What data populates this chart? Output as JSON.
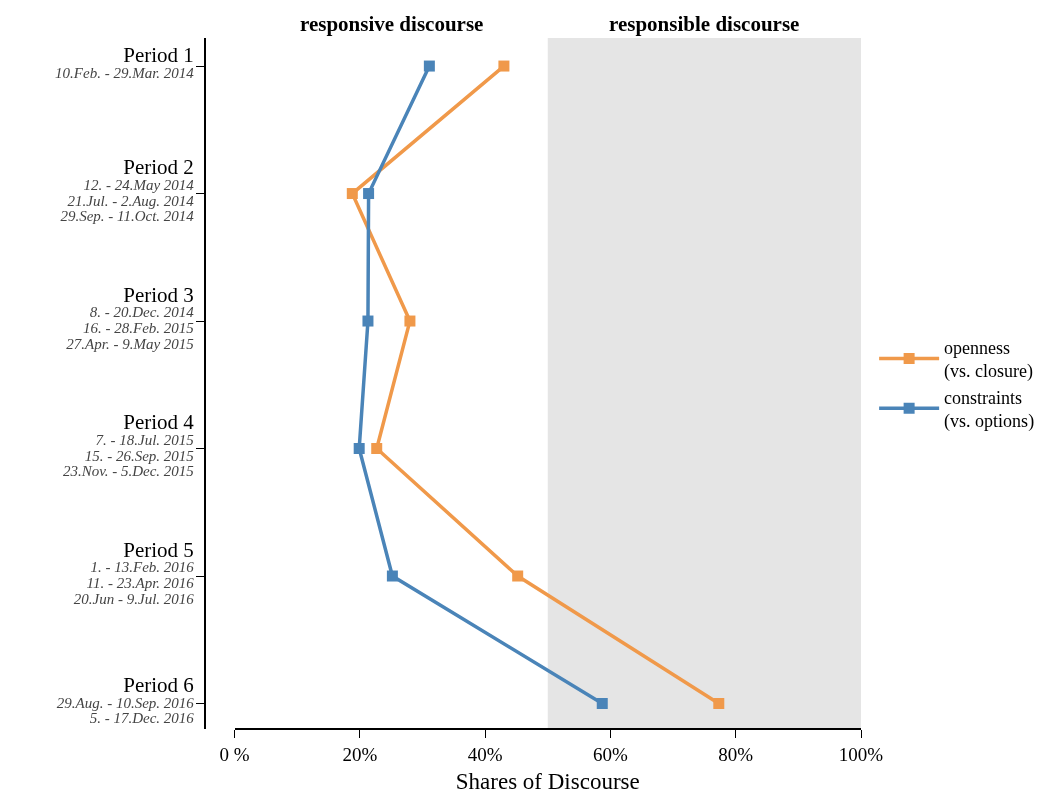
{
  "chart_data": {
    "type": "line",
    "categories": [
      "Period 1\n10.Feb. - 29.Mar. 2014",
      "Period 2\n12. - 24.May 2014\n21.Jul. - 2.Aug. 2014\n29.Sep. - 11.Oct. 2014",
      "Period 3\n8. - 20.Dec. 2014\n16. - 28.Feb. 2015\n27.Apr. - 9.May 2015",
      "Period 4\n7. - 18.Jul. 2015\n15. - 26.Sep. 2015\n23.Nov. - 5.Dec. 2015",
      "Period 5\n1. - 13.Feb. 2016\n11. - 23.Apr. 2016\n20.Jun - 9.Jul. 2016",
      "Period 6\n29.Aug. - 10.Sep. 2016\n5. - 17.Dec. 2016"
    ],
    "orientation": "horizontal",
    "series": [
      {
        "name": "openness\n(vs. closure)",
        "color": "#f0994a",
        "values": [
          43.0,
          18.8,
          28.0,
          22.7,
          45.2,
          77.3
        ]
      },
      {
        "name": "constraints\n(vs. options)",
        "color": "#4a84b8",
        "values": [
          31.1,
          21.4,
          21.3,
          19.9,
          25.2,
          58.7
        ]
      }
    ],
    "xlabel": "Shares of Discourse",
    "xlim": [
      0,
      100
    ],
    "xticks": [
      {
        "value": 0,
        "label": "0 %"
      },
      {
        "value": 20,
        "label": "20%"
      },
      {
        "value": 40,
        "label": "40%"
      },
      {
        "value": 60,
        "label": "60%"
      },
      {
        "value": 80,
        "label": "80%"
      },
      {
        "value": 100,
        "label": "100%"
      }
    ],
    "annotations": [
      "responsive discourse"
    ],
    "bands": [
      {
        "axis": "x",
        "from": 50,
        "to": 100,
        "label": "responsible discourse",
        "color": "#e5e5e5"
      }
    ],
    "marker": "square",
    "line_style": "solid",
    "grid": false,
    "legend": "right"
  }
}
